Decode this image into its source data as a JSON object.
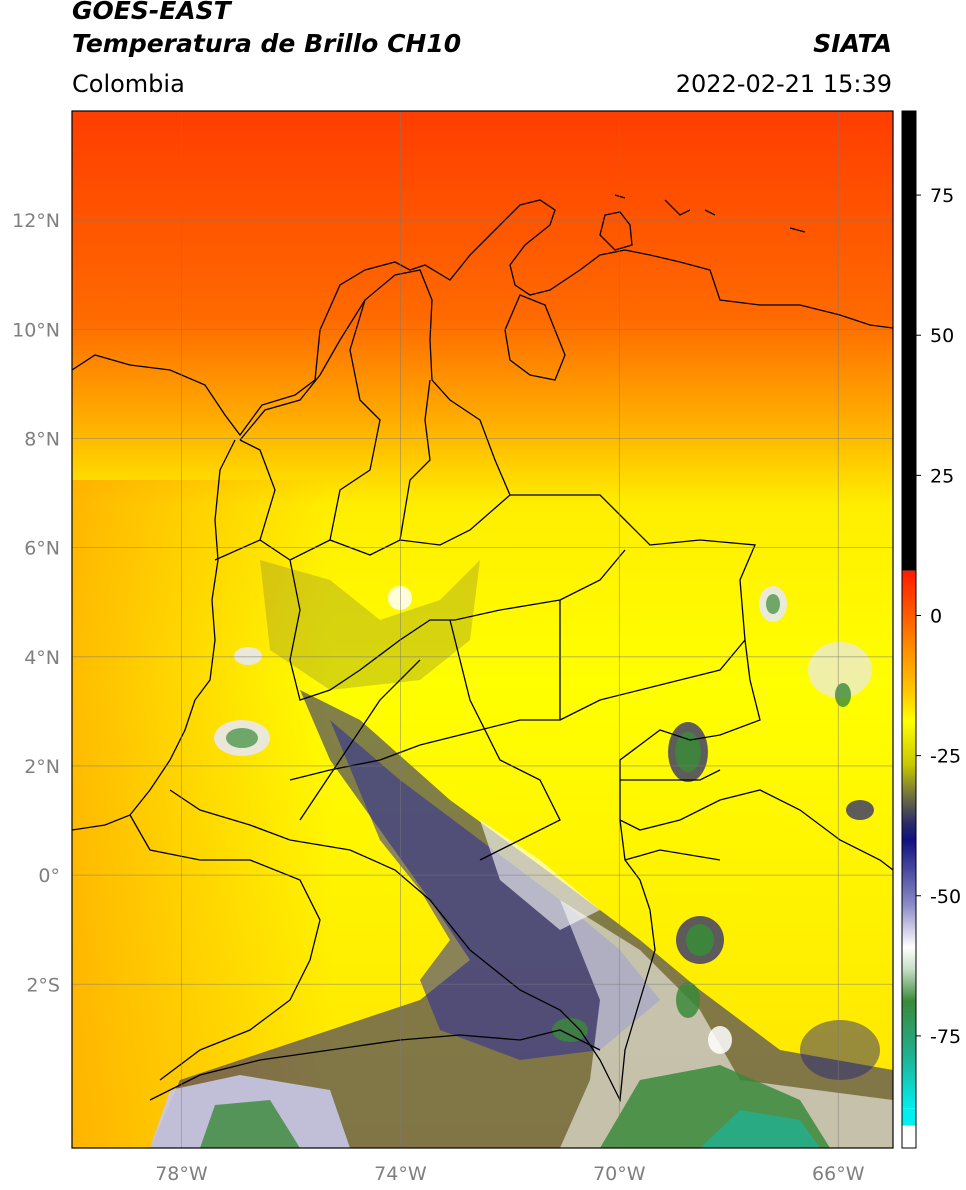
{
  "header": {
    "satellite": "GOES-EAST",
    "product": "Temperatura de Brillo CH10",
    "agency": "SIATA",
    "region": "Colombia",
    "datetime": "2022-02-21 15:39"
  },
  "map": {
    "lon_range": [
      -80,
      -65
    ],
    "lat_range": [
      -5,
      14
    ],
    "lat_ticks": [
      {
        "value": 12,
        "label": "12°N"
      },
      {
        "value": 10,
        "label": "10°N"
      },
      {
        "value": 8,
        "label": "8°N"
      },
      {
        "value": 6,
        "label": "6°N"
      },
      {
        "value": 4,
        "label": "4°N"
      },
      {
        "value": 2,
        "label": "2°N"
      },
      {
        "value": 0,
        "label": "0°"
      },
      {
        "value": -2,
        "label": "2°S"
      }
    ],
    "lon_ticks": [
      {
        "value": -78,
        "label": "78°W"
      },
      {
        "value": -74,
        "label": "74°W"
      },
      {
        "value": -70,
        "label": "70°W"
      },
      {
        "value": -66,
        "label": "66°W"
      }
    ],
    "grid": true
  },
  "colorbar": {
    "range": [
      -95,
      90
    ],
    "ticks": [
      {
        "value": 75,
        "label": "75"
      },
      {
        "value": 50,
        "label": "50"
      },
      {
        "value": 25,
        "label": "25"
      },
      {
        "value": 0,
        "label": "0"
      },
      {
        "value": -25,
        "label": "-25"
      },
      {
        "value": -50,
        "label": "-50"
      },
      {
        "value": -75,
        "label": "-75"
      }
    ],
    "colors": {
      "hot": "#ff3a00",
      "warm": "#ffa500",
      "mild": "#ffff00",
      "olive": "#8c8c2a",
      "cold": "#1a1a80",
      "white": "#ffffff",
      "green": "#3a8a3a",
      "cyan": "#10d8d8",
      "black": "#000000"
    }
  }
}
